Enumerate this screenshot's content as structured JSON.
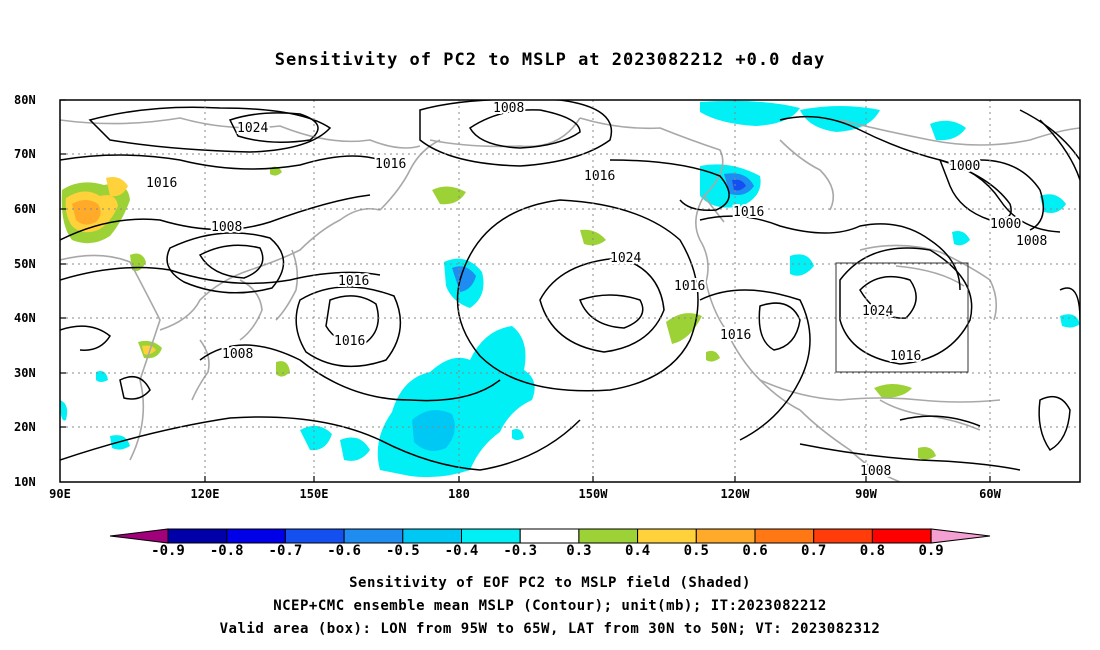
{
  "title": "Sensitivity of PC2 to MSLP at 2023082212 +0.0 day",
  "lat_labels": [
    "80N",
    "70N",
    "60N",
    "50N",
    "40N",
    "30N",
    "20N",
    "10N"
  ],
  "lon_labels": [
    "90E",
    "120E",
    "150E",
    "180",
    "150W",
    "120W",
    "90W",
    "60W"
  ],
  "contour_labels": [
    "1008",
    "1024",
    "1016",
    "1016",
    "1016",
    "1008",
    "1016",
    "1016",
    "1024",
    "1016",
    "1016",
    "1008",
    "1016",
    "1000",
    "1000",
    "1008",
    "1024",
    "1016",
    "1008"
  ],
  "colorbar": {
    "ticks": [
      "-0.9",
      "-0.8",
      "-0.7",
      "-0.6",
      "-0.5",
      "-0.4",
      "-0.3",
      "0.3",
      "0.4",
      "0.5",
      "0.6",
      "0.7",
      "0.8",
      "0.9"
    ],
    "colors": [
      "#a0007a",
      "#0000a8",
      "#0000e8",
      "#1450f0",
      "#1e8cf0",
      "#00c8f5",
      "#00f0f5",
      "#ffffff",
      "#9cd235",
      "#ffd23c",
      "#ffaa28",
      "#ff7814",
      "#ff3c0a",
      "#ff0000",
      "#f5a0d2"
    ]
  },
  "captions": [
    "Sensitivity of EOF PC2 to MSLP field (Shaded)",
    "NCEP+CMC ensemble mean MSLP (Contour); unit(mb); IT:2023082212",
    "Valid area (box): LON from 95W to 65W, LAT from 30N to 50N; VT: 2023082312"
  ],
  "valid_area": {
    "lon": [
      "95W",
      "65W"
    ],
    "lat": [
      "30N",
      "50N"
    ]
  }
}
